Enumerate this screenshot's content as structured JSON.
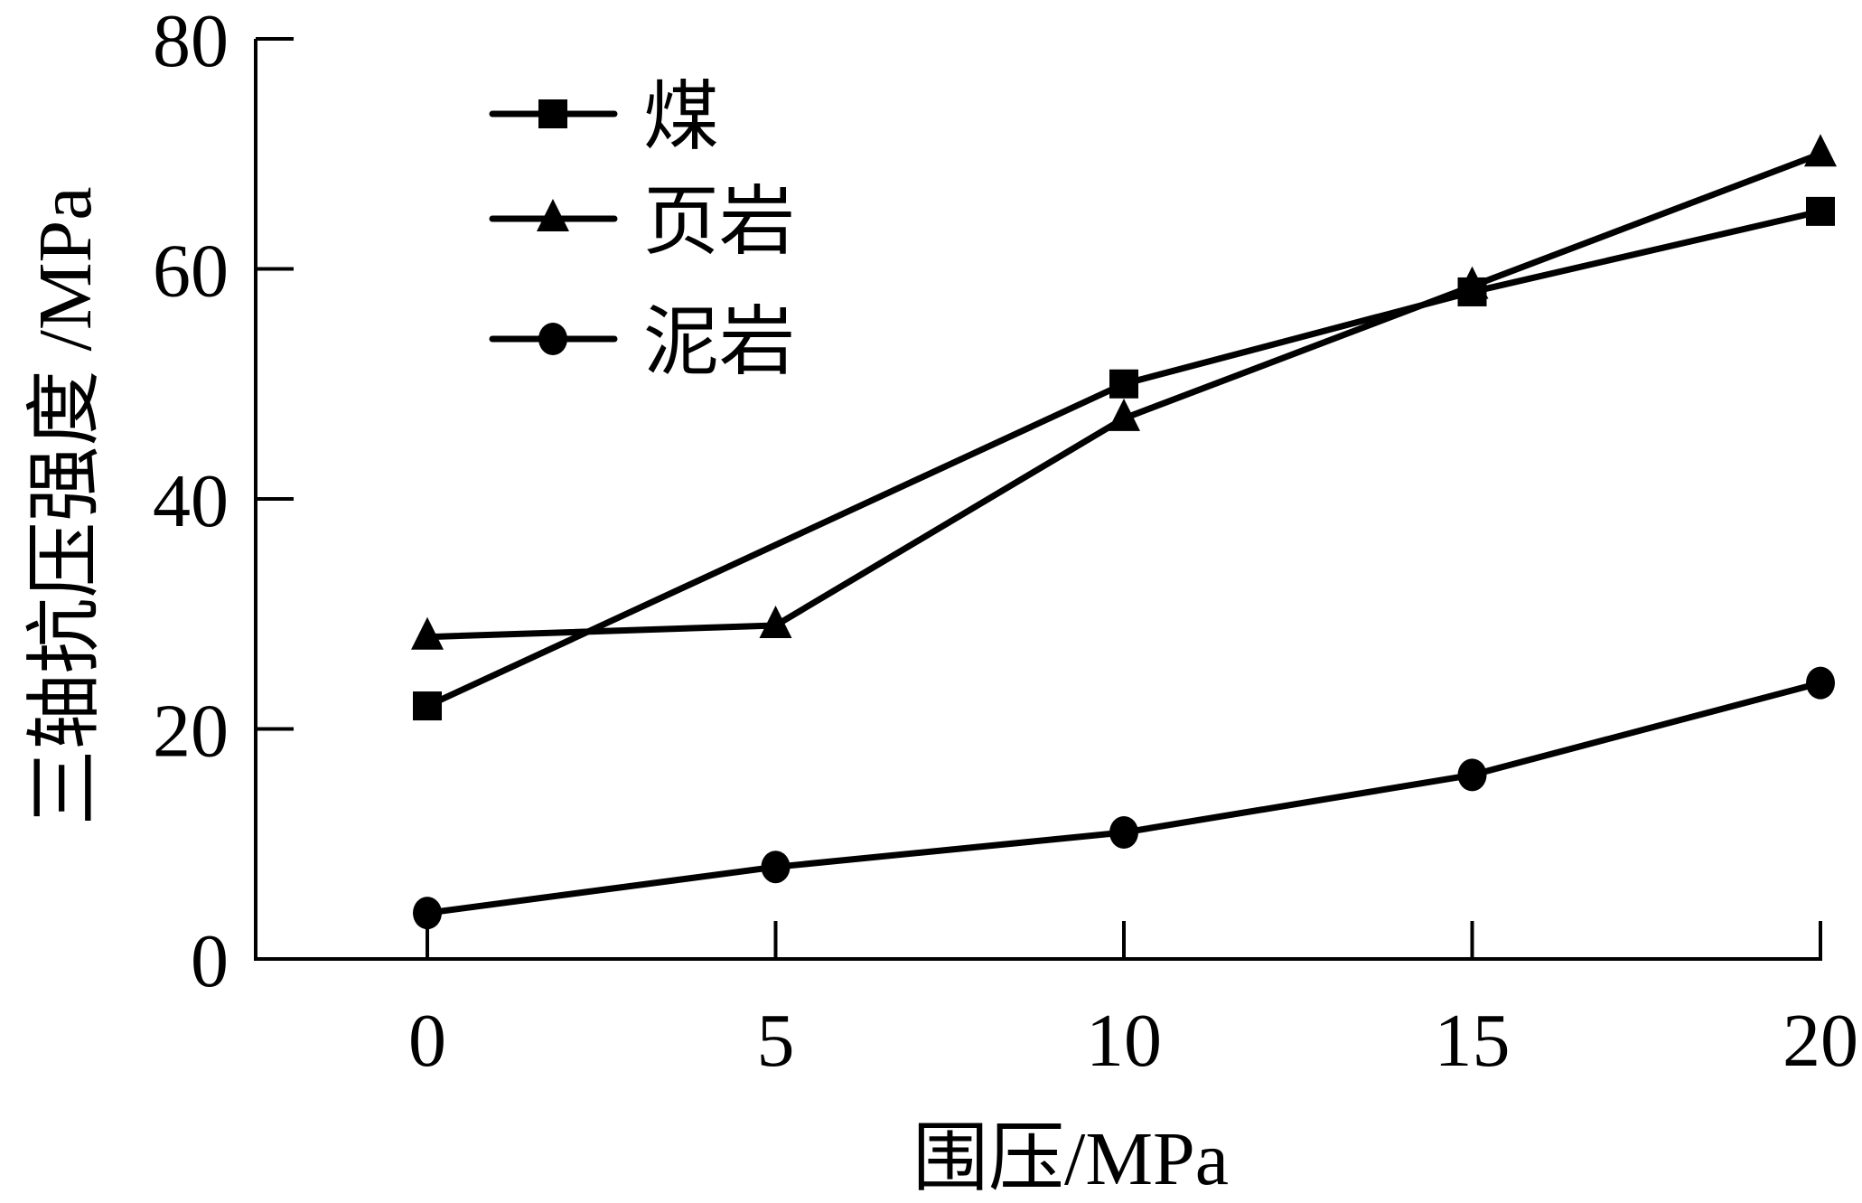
{
  "chart_data": {
    "type": "line",
    "title": "",
    "xlabel": "围压/MPa",
    "ylabel": "三轴抗压强度 /MPa",
    "xlim": [
      -2.5,
      20.5
    ],
    "ylim": [
      0,
      80
    ],
    "x_ticks": [
      "0",
      "5",
      "10",
      "15",
      "20"
    ],
    "y_ticks": [
      "0",
      "20",
      "40",
      "60",
      "80"
    ],
    "grid": false,
    "legend_position": "upper-left",
    "series": [
      {
        "name": "煤",
        "marker": "square",
        "x": [
          0,
          10,
          15,
          20
        ],
        "values": [
          22,
          50,
          58,
          65
        ]
      },
      {
        "name": "页岩",
        "marker": "triangle",
        "x": [
          0,
          5,
          10,
          15,
          20
        ],
        "values": [
          28,
          29,
          47,
          58.5,
          70
        ]
      },
      {
        "name": "泥岩",
        "marker": "circle",
        "x": [
          0,
          5,
          10,
          15,
          20
        ],
        "values": [
          4,
          8,
          11,
          16,
          24
        ]
      }
    ]
  },
  "legend": {
    "items": [
      "煤",
      "页岩",
      "泥岩"
    ]
  },
  "axes": {
    "xlabel": "围压/MPa",
    "ylabel": "三轴抗压强度 /MPa",
    "x_ticks": [
      "0",
      "5",
      "10",
      "15",
      "20"
    ],
    "y_ticks": [
      "0",
      "20",
      "40",
      "60",
      "80"
    ]
  }
}
